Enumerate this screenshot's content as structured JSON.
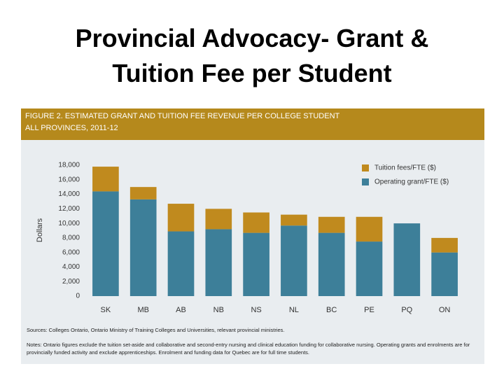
{
  "title": "Provincial Advocacy- Grant & Tuition Fee per Student",
  "chart_data": {
    "type": "bar",
    "stacked": true,
    "title": "FIGURE 2. ESTIMATED GRANT AND TUITION FEE REVENUE PER COLLEGE STUDENT",
    "subtitle": "ALL PROVINCES, 2011-12",
    "y_label": "Dollars",
    "categories": [
      "SK",
      "MB",
      "AB",
      "NB",
      "NS",
      "NL",
      "BC",
      "PE",
      "PQ",
      "ON"
    ],
    "series": [
      {
        "name": "Operating grant/FTE ($)",
        "color": "#3d7f99",
        "values": [
          14400,
          13300,
          8900,
          9200,
          8700,
          9700,
          8700,
          7500,
          10000,
          6000
        ]
      },
      {
        "name": "Tuition fees/FTE ($)",
        "color": "#c08a1e",
        "values": [
          3400,
          1700,
          3800,
          2800,
          2800,
          1500,
          2200,
          3400,
          0,
          2000
        ]
      }
    ],
    "ylim": [
      0,
      18000
    ],
    "yticks": [
      0,
      {
        "value": 2000,
        "label": "2,000"
      },
      {
        "value": 4000,
        "label": "4,000"
      },
      {
        "value": 6000,
        "label": "6,000"
      },
      {
        "value": 8000,
        "label": "8,000"
      },
      {
        "value": 10000,
        "label": "10,000"
      },
      {
        "value": 12000,
        "label": "12,000"
      },
      {
        "value": 14000,
        "label": "14,000"
      },
      {
        "value": 16000,
        "label": "16,000"
      },
      {
        "value": 18000,
        "label": "18,000"
      }
    ],
    "grid": false,
    "legend": "top-right",
    "source": "Sources: Colleges Ontario, Ontario Ministry of Training Colleges and Universities, relevant provincial ministries.",
    "note": "Notes: Ontario figures exclude the tuition set-aside and collaborative and second-entry nursing and clinical education funding for collaborative nursing. Operating grants and enrolments are for provincially funded activity and exclude apprenticeships. Enrolment and funding data for Quebec are for full time students."
  }
}
